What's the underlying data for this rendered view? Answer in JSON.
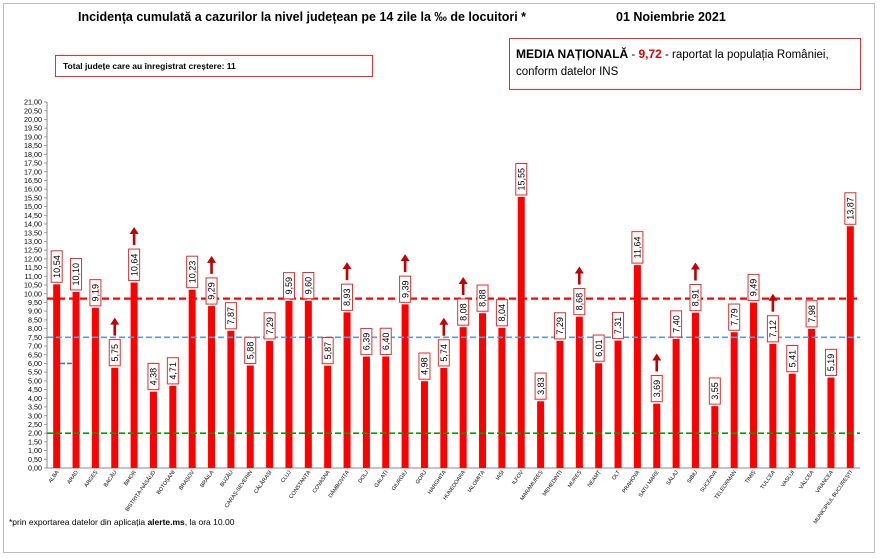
{
  "header": {
    "title": "Incidența cumulată a cazurilor la nivel județean pe 14 zile la ‰ de locuitori *",
    "date": "01 Noiembrie 2021"
  },
  "info_box": {
    "label": "Total județe care au înregistrat creștere:",
    "value": "11"
  },
  "national_box": {
    "label": "MEDIA NAȚIONALĂ",
    "dash1": " - ",
    "value": "9,72",
    "dash2": " -  ",
    "text1": "raportat la populația României,",
    "text2": "conform datelor INS"
  },
  "footnote": {
    "prefix": "*prin exportarea datelor din aplicația ",
    "app": "alerte.ms",
    "suffix": ", la ora 10.00"
  },
  "chart_data": {
    "type": "bar",
    "title": "Incidența cumulată a cazurilor la nivel județean pe 14 zile la ‰ de locuitori *",
    "categories": [
      "ALBA",
      "ARAD",
      "ARGEȘ",
      "BACĂU",
      "BIHOR",
      "BISTRIȚA-NĂSĂUD",
      "BOTOȘANI",
      "BRAȘOV",
      "BRĂILA",
      "BUZĂU",
      "CARAȘ-SEVERIN",
      "CĂLĂRAȘI",
      "CLUJ",
      "CONSTANȚA",
      "COVASNA",
      "DÂMBOVIȚA",
      "DOLJ",
      "GALAȚI",
      "GIURGIU",
      "GORJ",
      "HARGHITA",
      "HUNEDOARA",
      "IALOMIȚA",
      "IAȘI",
      "ILFOV",
      "MARAMUREȘ",
      "MEHEDINȚI",
      "MUREȘ",
      "NEAMȚ",
      "OLT",
      "PRAHOVA",
      "SATU MARE",
      "SĂLAJ",
      "SIBIU",
      "SUCEAVA",
      "TELEORMAN",
      "TIMIȘ",
      "TULCEA",
      "VASLUI",
      "VÂLCEA",
      "VRANCEA",
      "MUNICIPIUL BUCUREȘTI"
    ],
    "values": [
      10.54,
      10.1,
      9.19,
      5.75,
      10.64,
      4.38,
      4.71,
      10.23,
      9.29,
      7.87,
      5.88,
      7.29,
      9.59,
      9.6,
      5.87,
      8.93,
      6.39,
      6.4,
      9.39,
      4.98,
      5.74,
      8.08,
      8.88,
      8.04,
      15.55,
      3.83,
      7.29,
      8.68,
      6.01,
      7.31,
      11.64,
      3.69,
      7.4,
      8.91,
      3.55,
      7.79,
      9.49,
      7.12,
      5.41,
      7.98,
      5.19,
      13.87
    ],
    "labels": [
      "10,54",
      "10,10",
      "9,19",
      "5,75",
      "10,64",
      "4,38",
      "4,71",
      "10,23",
      "9,29",
      "7,87",
      "5,88",
      "7,29",
      "9,59",
      "9,60",
      "5,87",
      "8,93",
      "6,39",
      "6,40",
      "9,39",
      "4,98",
      "5,74",
      "8,08",
      "8,88",
      "8,04",
      "15,55",
      "3,83",
      "7,29",
      "8,68",
      "6,01",
      "7,31",
      "11,64",
      "3,69",
      "7,40",
      "8,91",
      "3,55",
      "7,79",
      "9,49",
      "7,12",
      "5,41",
      "7,98",
      "5,19",
      "13,87"
    ],
    "increase": [
      3,
      4,
      8,
      15,
      18,
      20,
      21,
      27,
      31,
      33,
      37
    ],
    "yticks": [
      "0,00",
      "0,50",
      "1,00",
      "1,50",
      "2,00",
      "2,50",
      "3,00",
      "3,50",
      "4,00",
      "4,50",
      "5,00",
      "5,50",
      "6,00",
      "6,50",
      "7,00",
      "7,50",
      "8,00",
      "8,50",
      "9,00",
      "9,50",
      "10,00",
      "10,50",
      "11,00",
      "11,50",
      "12,00",
      "12,50",
      "13,00",
      "13,50",
      "14,00",
      "14,50",
      "15,00",
      "15,50",
      "16,00",
      "16,50",
      "17,00",
      "17,50",
      "18,00",
      "18,50",
      "19,00",
      "19,50",
      "20,00",
      "20,50",
      "21,00"
    ],
    "ylim": [
      0,
      21
    ],
    "reference_lines": [
      {
        "value": 9.72,
        "style": "dashed",
        "color": "#ff0000"
      },
      {
        "value": 7.5,
        "style": "dashed",
        "color": "#5b9bd5"
      },
      {
        "value": 2.0,
        "style": "dashed",
        "color": "#00a000"
      }
    ],
    "bar_color": "#ff0000",
    "grid": false
  }
}
